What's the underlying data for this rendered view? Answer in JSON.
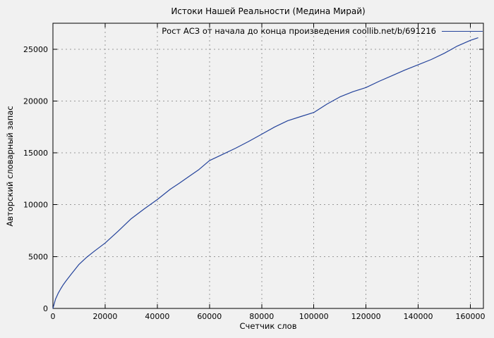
{
  "page": {
    "background": "#f1f1f1"
  },
  "chart_data": {
    "type": "line",
    "title": "Истоки Нашей Реальности (Медина Мирай)",
    "legend": "Рост АСЗ от начала до конца произведения coollib.net/b/691216",
    "xlabel": "Счетчик слов",
    "ylabel": "Авторский словарный запас",
    "xlim": [
      0,
      165000
    ],
    "ylim": [
      0,
      27500
    ],
    "xticks": [
      0,
      20000,
      40000,
      60000,
      80000,
      100000,
      120000,
      140000,
      160000
    ],
    "yticks": [
      0,
      5000,
      10000,
      15000,
      20000,
      25000
    ],
    "grid": true,
    "legend_position": "top-right",
    "line_color": "#24439b",
    "grid_color": "#999999",
    "border_color": "#000000",
    "series": [
      {
        "name": "Рост АСЗ от начала до конца произведения coollib.net/b/691216",
        "points": [
          [
            0,
            0
          ],
          [
            1000,
            900
          ],
          [
            2000,
            1450
          ],
          [
            3000,
            1900
          ],
          [
            4000,
            2300
          ],
          [
            5000,
            2650
          ],
          [
            7000,
            3300
          ],
          [
            10000,
            4250
          ],
          [
            13000,
            4950
          ],
          [
            16000,
            5550
          ],
          [
            20000,
            6300
          ],
          [
            25000,
            7450
          ],
          [
            30000,
            8650
          ],
          [
            35000,
            9600
          ],
          [
            40000,
            10500
          ],
          [
            45000,
            11500
          ],
          [
            48000,
            12000
          ],
          [
            52000,
            12700
          ],
          [
            56000,
            13400
          ],
          [
            60000,
            14250
          ],
          [
            65000,
            14850
          ],
          [
            70000,
            15450
          ],
          [
            75000,
            16100
          ],
          [
            80000,
            16800
          ],
          [
            85000,
            17500
          ],
          [
            90000,
            18100
          ],
          [
            95000,
            18500
          ],
          [
            100000,
            18900
          ],
          [
            105000,
            19700
          ],
          [
            110000,
            20400
          ],
          [
            115000,
            20900
          ],
          [
            120000,
            21300
          ],
          [
            125000,
            21900
          ],
          [
            130000,
            22450
          ],
          [
            135000,
            23000
          ],
          [
            140000,
            23500
          ],
          [
            145000,
            24000
          ],
          [
            150000,
            24600
          ],
          [
            155000,
            25300
          ],
          [
            160000,
            25850
          ],
          [
            163000,
            26100
          ]
        ]
      }
    ]
  }
}
